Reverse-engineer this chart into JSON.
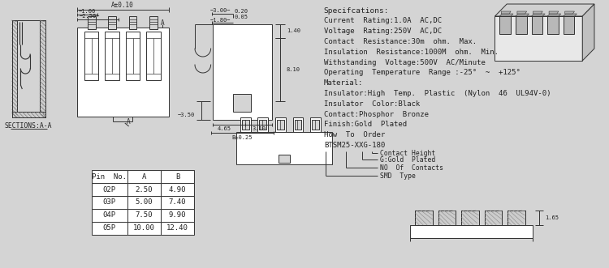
{
  "bg_color": "#d4d4d4",
  "specs": [
    "Specifcations:",
    "Current  Rating:1.0A  AC,DC",
    "Voltage  Rating:250V  AC,DC",
    "Contact  Resistance:30m  ohm.  Max.",
    "Insulation  Resistance:1000M  ohm.  Min.",
    "Withstanding  Voltage:500V  AC/Minute",
    "Operating  Temperature  Range :-25°  ~  +125°",
    "Material:",
    "Insulator:High  Temp.  Plastic  (Nylon  46  UL94V-0)",
    "Insulator  Color:Black",
    "Contact:Phosphor  Bronze",
    "Finish:Gold  Plated",
    "How  To  Order",
    "BTSM25-XXG-180"
  ],
  "order_labels": [
    "Contact Height",
    "G:Gold  Plated",
    "NO  Of  Contacts",
    "SMD  Type"
  ],
  "table_headers": [
    "Pin  No.",
    "A",
    "B"
  ],
  "table_rows": [
    [
      "02P",
      "2.50",
      "4.90"
    ],
    [
      "03P",
      "5.00",
      "7.40"
    ],
    [
      "04P",
      "7.50",
      "9.90"
    ],
    [
      "05P",
      "10.00",
      "12.40"
    ]
  ],
  "sections_label": "SECTIONS:A-A"
}
